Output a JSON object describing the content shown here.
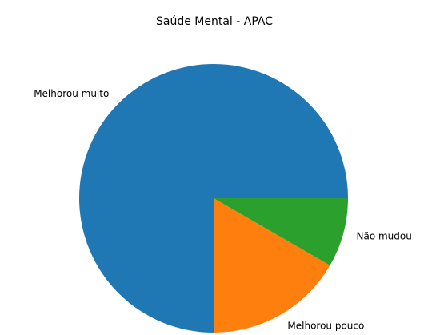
{
  "chart_data": {
    "type": "pie",
    "title": "Saúde Mental - APAC",
    "categories": [
      "Melhorou muito",
      "Melhorou pouco",
      "Não mudou"
    ],
    "values": [
      9,
      2,
      1
    ],
    "colors": [
      "#1f77b4",
      "#ff7f0e",
      "#2ca02c"
    ],
    "start_angle": 0
  }
}
